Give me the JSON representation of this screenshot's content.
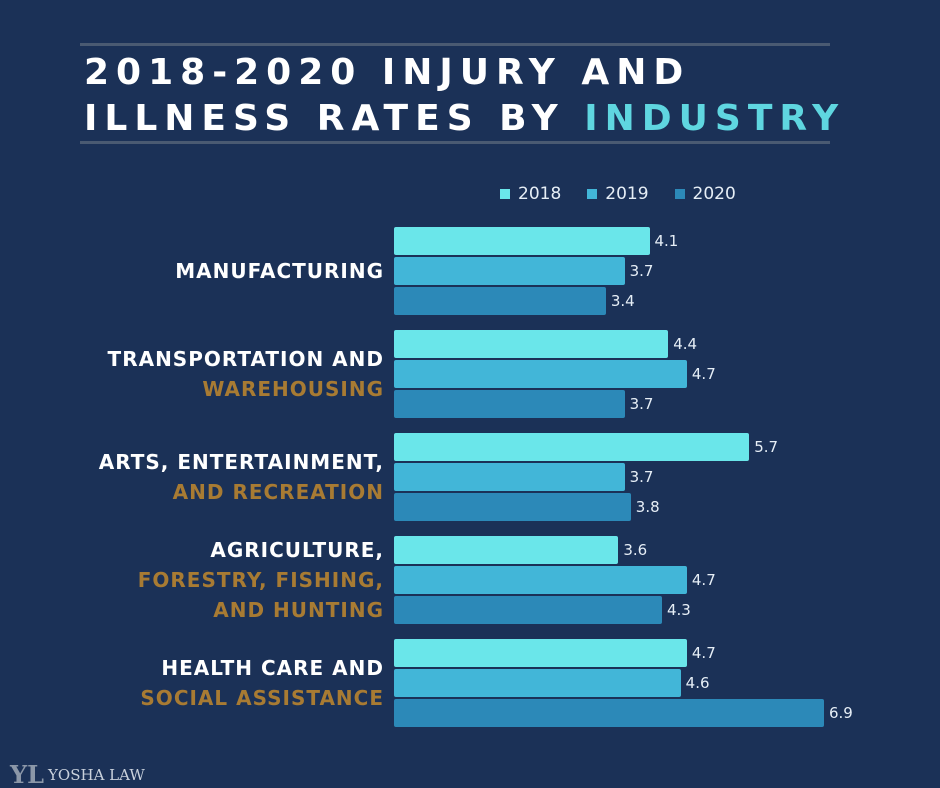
{
  "chart_data": {
    "type": "bar",
    "orientation": "horizontal",
    "title_line1": "2018-2020 INJURY AND",
    "title_line2": "ILLNESS RATES BY",
    "title_highlight": "INDUSTRY",
    "categories": [
      {
        "line1": "MANUFACTURING",
        "line2": ""
      },
      {
        "line1": "TRANSPORTATION AND",
        "line2": "WAREHOUSING"
      },
      {
        "line1": "ARTS, ENTERTAINMENT,",
        "line2": "AND RECREATION"
      },
      {
        "line1": "AGRICULTURE,",
        "line2": "FORESTRY, FISHING,",
        "line3": "AND HUNTING"
      },
      {
        "line1": "HEALTH CARE AND",
        "line2": "SOCIAL ASSISTANCE"
      }
    ],
    "series": [
      {
        "name": "2018",
        "color": "#6ae6ea",
        "values": [
          4.1,
          4.4,
          5.7,
          3.6,
          4.7
        ]
      },
      {
        "name": "2019",
        "color": "#42b6d8",
        "values": [
          3.7,
          4.7,
          3.7,
          4.7,
          4.6
        ]
      },
      {
        "name": "2020",
        "color": "#2c89b8",
        "values": [
          3.4,
          3.7,
          3.8,
          4.3,
          6.9
        ]
      }
    ],
    "xlim": [
      0,
      7
    ],
    "grid": false,
    "legend_position": "top-right",
    "data_labels": true
  },
  "logo": {
    "mark": "YL",
    "name": "YOSHA LAW"
  },
  "colors": {
    "background": "#1b3157",
    "accent": "#5fd6e0",
    "secondary_label": "#a87b33"
  }
}
